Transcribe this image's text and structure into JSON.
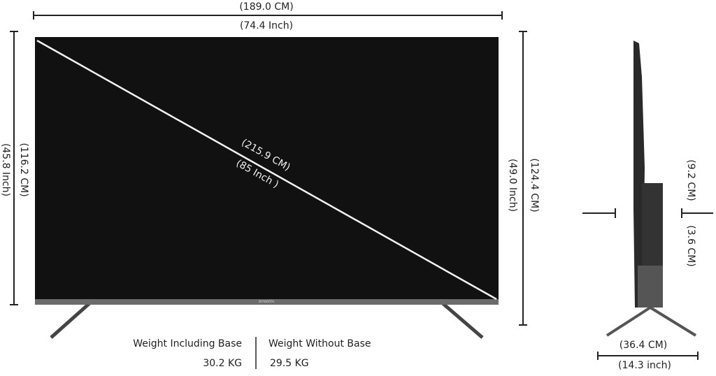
{
  "dimensions": {
    "width_cm": "(189.0 CM)",
    "width_inch": "(74.4 Inch)",
    "diagonal_cm": "(215.9 CM)",
    "diagonal_inch": "(85 Inch )",
    "height_cm": "(116.2 CM)",
    "height_inch": "(45.8 Inch)",
    "height_with_stand_cm": "(124.4  CM)",
    "height_with_stand_inch": "(49.0 Inch)",
    "side_upper_cm": "(9.2 CM)",
    "side_lower_cm": "(3.6 CM)",
    "depth_cm": "(36.4 CM)",
    "depth_inch": "(14.3  inch)"
  },
  "brand": "SKYWORTH",
  "weights": {
    "with_base_label": "Weight Including Base",
    "with_base_value": "30.2 KG",
    "without_base_label": "Weight Without Base",
    "without_base_value": "29.5 KG"
  }
}
